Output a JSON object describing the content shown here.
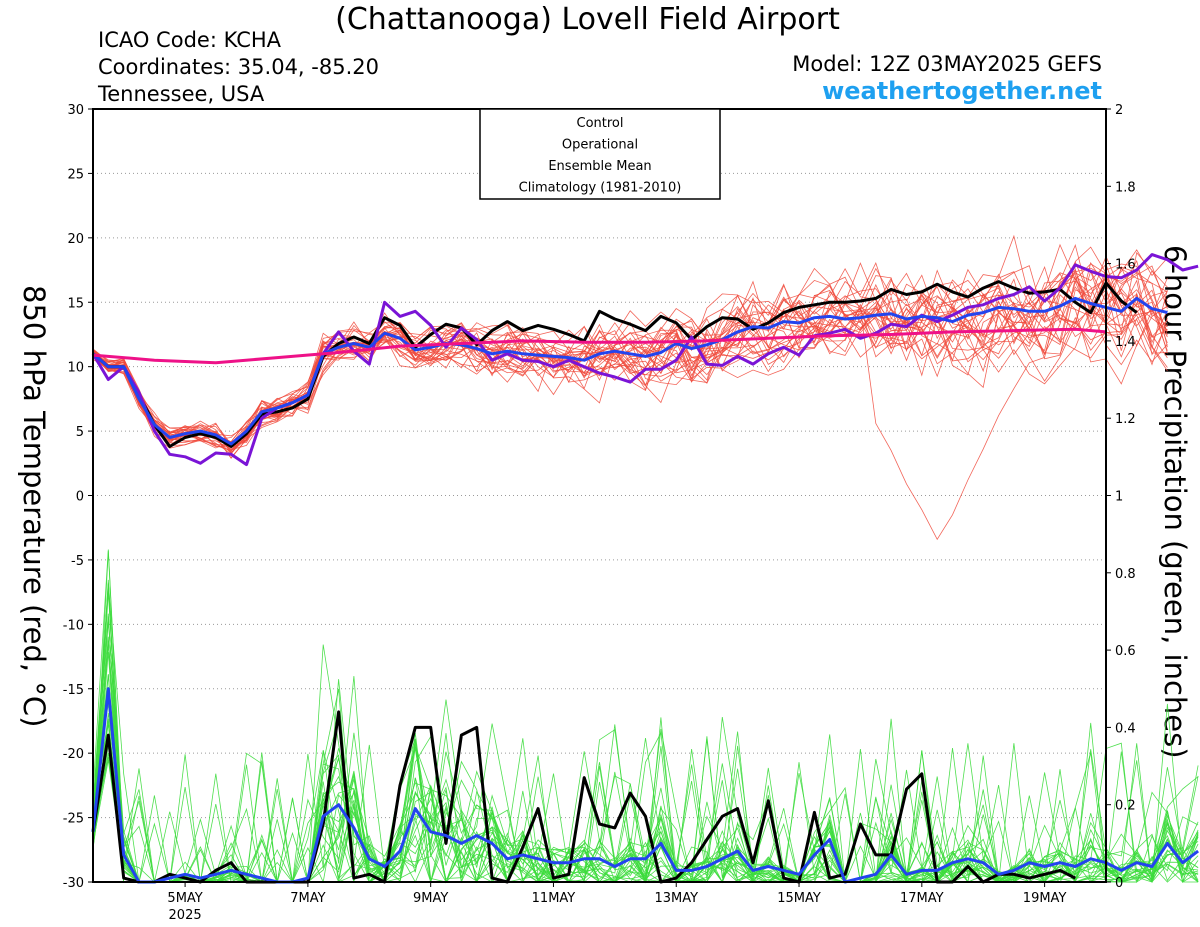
{
  "header": {
    "title": "(Chattanooga) Lovell Field Airport",
    "icao": "ICAO Code: KCHA",
    "coordinates": "Coordinates: 35.04, -85.20",
    "region": "Tennessee, USA",
    "model": "Model: 12Z 03MAY2025 GEFS",
    "site": "weathertogether.net"
  },
  "chart_data": {
    "type": "line",
    "ylabel": "850 hPa Temperature (red, °C)",
    "y2label": "6-hour Precipitation (green, inches)",
    "ylim": [
      -30,
      30
    ],
    "y2lim": [
      0,
      2
    ],
    "yticks": [
      "30",
      "25",
      "20",
      "15",
      "10",
      "5",
      "0",
      "-5",
      "-10",
      "-15",
      "-20",
      "-25",
      "-30"
    ],
    "y2ticks": [
      "2",
      "1.8",
      "1.6",
      "1.4",
      "1.2",
      "1",
      "0.8",
      "0.6",
      "0.4",
      "0.2",
      "0"
    ],
    "x_range_hours": [
      0,
      396
    ],
    "x_start": "03MAY2025 12Z",
    "x_step_hours": 6,
    "xticks": [
      {
        "label": "5MAY",
        "hour": 36,
        "year": "2025"
      },
      {
        "label": "7MAY",
        "hour": 84
      },
      {
        "label": "9MAY",
        "hour": 132
      },
      {
        "label": "11MAY",
        "hour": 180
      },
      {
        "label": "13MAY",
        "hour": 228
      },
      {
        "label": "15MAY",
        "hour": 276
      },
      {
        "label": "17MAY",
        "hour": 324
      },
      {
        "label": "19MAY",
        "hour": 372
      }
    ],
    "legend": {
      "placement": "top-center",
      "entries": [
        {
          "label": "Control",
          "color": "#000000"
        },
        {
          "label": "Operational",
          "color": "#7a14d6"
        },
        {
          "label": "Ensemble Mean",
          "color": "#2244ee"
        },
        {
          "label": "Climatology (1981-2010)",
          "color": "#ee1188"
        }
      ]
    },
    "grid": "horizontal dotted",
    "colors": {
      "members_temp": "#f04a3c",
      "members_precip": "#3cdc3c",
      "control": "#000000",
      "operational": "#7a14d6",
      "mean": "#2244ee",
      "climatology": "#ee1188"
    },
    "series": [
      {
        "name": "Control",
        "axis": "temperature",
        "values": [
          11,
          10,
          10,
          7.8,
          5.5,
          3.8,
          4.5,
          4.8,
          4.5,
          3.8,
          4.8,
          6.3,
          6.5,
          6.8,
          7.5,
          10.8,
          11.8,
          12.3,
          11.8,
          13.8,
          13.2,
          11.5,
          12.5,
          13.3,
          13,
          11.7,
          12.8,
          13.5,
          12.8,
          13.2,
          12.9,
          12.5,
          12,
          14.3,
          13.7,
          13.3,
          12.8,
          13.9,
          13.4,
          12.1,
          13.1,
          13.8,
          13.7,
          12.9,
          13.4,
          14.2,
          14.6,
          14.8,
          15,
          15,
          15.1,
          15.3,
          16,
          15.6,
          15.8,
          16.4,
          15.8,
          15.4,
          16.1,
          16.6,
          16.1,
          15.7,
          15.8,
          16,
          15,
          14.2,
          16.5,
          15.1,
          14.2
        ]
      },
      {
        "name": "Operational",
        "axis": "temperature",
        "values": [
          11,
          9,
          10,
          8,
          5,
          3.2,
          3,
          2.5,
          3.3,
          3.2,
          2.4,
          6,
          6.8,
          7.2,
          7.8,
          11,
          12.7,
          11.2,
          10.2,
          15,
          13.9,
          14.3,
          13.2,
          11.5,
          13,
          12.1,
          10.5,
          11,
          10.5,
          10.4,
          10,
          10.5,
          10,
          9.5,
          9.2,
          8.8,
          9.8,
          9.8,
          10.5,
          12.3,
          10.2,
          10.1,
          10.8,
          10.2,
          11,
          11.5,
          10.9,
          12.4,
          12.6,
          12.9,
          12.2,
          12.6,
          13.3,
          13.1,
          14,
          13.5,
          14,
          14.6,
          14.8,
          15.3,
          15.6,
          16.2,
          15.1,
          16.1,
          17.9,
          17.4,
          17,
          16.9,
          17.5,
          18.7,
          18.3,
          17.5,
          17.8
        ]
      },
      {
        "name": "Ensemble Mean",
        "axis": "temperature",
        "values": [
          11,
          10,
          10,
          7.5,
          5.5,
          4.5,
          4.8,
          5,
          4.7,
          4,
          5,
          6.5,
          6.8,
          7.2,
          7.8,
          11,
          11.5,
          11.8,
          11.5,
          12.6,
          12.2,
          11.3,
          11.5,
          11.8,
          11.7,
          11.4,
          11,
          11.2,
          11,
          10.9,
          10.8,
          10.7,
          10.5,
          11,
          11.2,
          11,
          10.8,
          11.1,
          11.8,
          11.4,
          11.7,
          12.1,
          12.7,
          13.1,
          13,
          13.5,
          13.4,
          13.8,
          13.9,
          13.7,
          13.8,
          14,
          14.1,
          13.7,
          13.9,
          13.8,
          13.5,
          14,
          14.2,
          14.6,
          14.5,
          14.3,
          14.3,
          14.7,
          15.3,
          14.9,
          14.6,
          14.3,
          15.3,
          14.5,
          14.2
        ]
      },
      {
        "name": "Climatology (1981-2010)",
        "axis": "temperature",
        "hours": [
          0,
          24,
          48,
          72,
          96,
          120,
          144,
          168,
          192,
          216,
          240,
          264,
          288,
          312,
          336,
          360,
          384,
          396
        ],
        "values": [
          10.9,
          10.5,
          10.3,
          10.7,
          11.1,
          11.6,
          11.8,
          12,
          11.9,
          11.9,
          12,
          12.2,
          12.4,
          12.5,
          12.7,
          12.8,
          12.9,
          12.7
        ]
      },
      {
        "name": "Control",
        "axis": "precipitation",
        "values": [
          0.13,
          0.38,
          0.01,
          0,
          0,
          0.02,
          0.01,
          0,
          0.03,
          0.05,
          0,
          0,
          0,
          0,
          0,
          0.15,
          0.44,
          0.01,
          0.02,
          0,
          0.25,
          0.4,
          0.4,
          0.1,
          0.38,
          0.4,
          0.01,
          0,
          0.09,
          0.19,
          0.01,
          0.02,
          0.27,
          0.15,
          0.14,
          0.23,
          0.17,
          0,
          0.01,
          0.05,
          0.11,
          0.17,
          0.19,
          0.05,
          0.21,
          0.01,
          0,
          0.18,
          0.01,
          0.02,
          0.15,
          0.07,
          0.07,
          0.24,
          0.28,
          0,
          0,
          0.04,
          0,
          0.02,
          0.02,
          0.01,
          0.02,
          0.03,
          0.01
        ]
      },
      {
        "name": "Ensemble Mean",
        "axis": "precipitation",
        "values": [
          0.13,
          0.5,
          0.07,
          0,
          0,
          0.01,
          0.02,
          0.01,
          0.02,
          0.03,
          0.02,
          0.01,
          0,
          0,
          0.01,
          0.17,
          0.2,
          0.14,
          0.06,
          0.04,
          0.08,
          0.19,
          0.13,
          0.12,
          0.1,
          0.12,
          0.1,
          0.06,
          0.07,
          0.06,
          0.05,
          0.05,
          0.06,
          0.06,
          0.04,
          0.06,
          0.06,
          0.1,
          0.03,
          0.03,
          0.04,
          0.06,
          0.08,
          0.03,
          0.04,
          0.03,
          0.02,
          0.07,
          0.11,
          0,
          0.01,
          0.02,
          0.07,
          0.02,
          0.03,
          0.03,
          0.05,
          0.06,
          0.05,
          0.02,
          0.03,
          0.05,
          0.04,
          0.05,
          0.04,
          0.06,
          0.05,
          0.03,
          0.05,
          0.04,
          0.1,
          0.05,
          0.08
        ]
      }
    ]
  }
}
